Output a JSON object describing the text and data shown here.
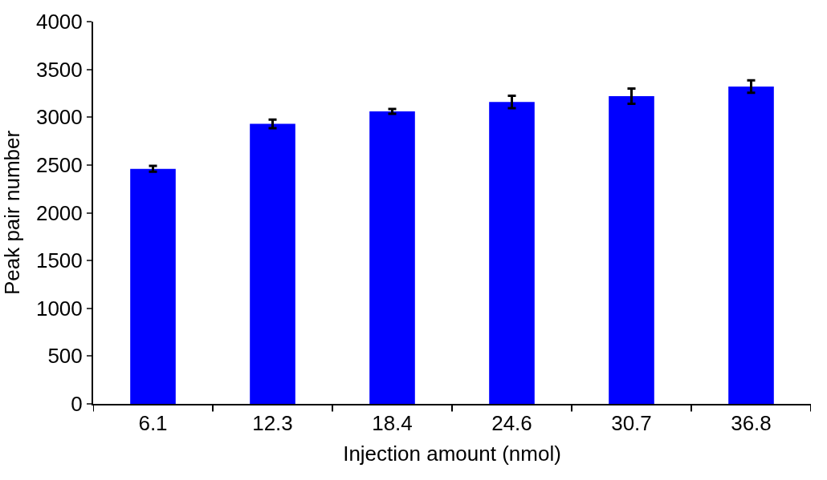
{
  "chart_data": {
    "type": "bar",
    "xlabel": "Injection amount (nmol)",
    "ylabel": "Peak pair number",
    "categories": [
      "6.1",
      "12.3",
      "18.4",
      "24.6",
      "30.7",
      "36.8"
    ],
    "values": [
      2460,
      2930,
      3060,
      3160,
      3220,
      3320
    ],
    "errors": [
      30,
      45,
      25,
      65,
      80,
      65
    ],
    "color": "#0000ff",
    "ylim": [
      0,
      4000
    ],
    "yticks": [
      0,
      500,
      1000,
      1500,
      2000,
      2500,
      3000,
      3500,
      4000
    ]
  }
}
